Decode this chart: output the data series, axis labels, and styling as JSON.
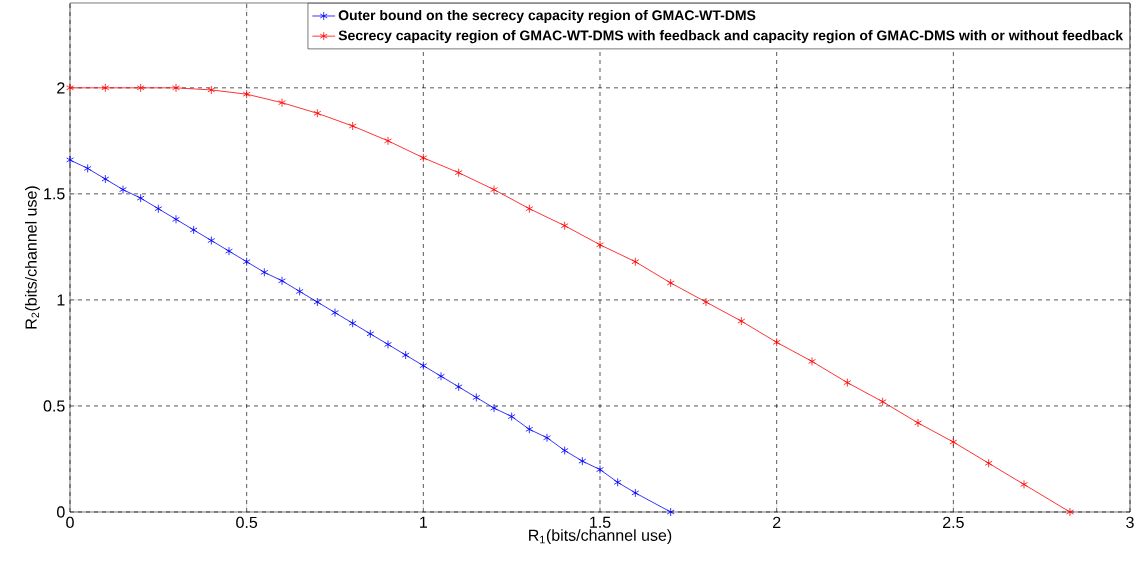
{
  "chart_data": {
    "type": "line",
    "xlabel": "R$_{1}$(bits/channel use)",
    "ylabel": "R$_{2}$(bits/channel use)",
    "xlim": [
      0,
      3
    ],
    "ylim": [
      0,
      2.4
    ],
    "xticks": [
      0,
      0.5,
      1,
      1.5,
      2,
      2.5,
      3
    ],
    "yticks": [
      0,
      0.5,
      1,
      1.5,
      2
    ],
    "grid": true,
    "legend": "top right",
    "marker": "cross",
    "line_style": "solid",
    "series": [
      {
        "name": "Outer bound on the secrecy capacity region of GMAC-WT-DMS",
        "color": "#0000ff",
        "x": [
          0,
          0.05,
          0.1,
          0.15,
          0.2,
          0.25,
          0.3,
          0.35,
          0.4,
          0.45,
          0.5,
          0.55,
          0.6,
          0.65,
          0.7,
          0.75,
          0.8,
          0.85,
          0.9,
          0.95,
          1.0,
          1.05,
          1.1,
          1.15,
          1.2,
          1.25,
          1.3,
          1.35,
          1.4,
          1.45,
          1.5,
          1.55,
          1.6,
          1.7
        ],
        "values": [
          1.66,
          1.62,
          1.57,
          1.52,
          1.48,
          1.43,
          1.38,
          1.33,
          1.28,
          1.23,
          1.18,
          1.13,
          1.09,
          1.04,
          0.99,
          0.94,
          0.89,
          0.84,
          0.79,
          0.74,
          0.69,
          0.64,
          0.59,
          0.54,
          0.49,
          0.45,
          0.39,
          0.35,
          0.29,
          0.24,
          0.2,
          0.14,
          0.09,
          0
        ]
      },
      {
        "name": "Secrecy capacity region of GMAC-WT-DMS with feedback and capacity region of GMAC-DMS with or without feedback",
        "color": "#ff0000",
        "x": [
          0,
          0.1,
          0.2,
          0.3,
          0.4,
          0.5,
          0.6,
          0.7,
          0.8,
          0.9,
          1.0,
          1.1,
          1.2,
          1.3,
          1.4,
          1.5,
          1.6,
          1.7,
          1.8,
          1.9,
          2.0,
          2.1,
          2.2,
          2.3,
          2.4,
          2.5,
          2.6,
          2.7,
          2.83
        ],
        "values": [
          2,
          2,
          2,
          2,
          1.99,
          1.97,
          1.93,
          1.88,
          1.82,
          1.75,
          1.67,
          1.6,
          1.52,
          1.43,
          1.35,
          1.26,
          1.18,
          1.08,
          0.99,
          0.9,
          0.8,
          0.71,
          0.61,
          0.52,
          0.42,
          0.33,
          0.23,
          0.13,
          0
        ]
      }
    ]
  }
}
